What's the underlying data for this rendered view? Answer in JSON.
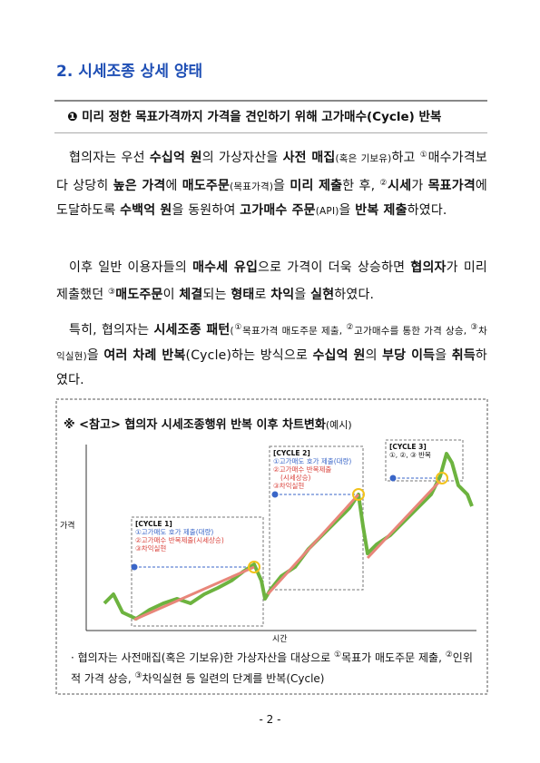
{
  "section_title": "2. 시세조종 상세 양태",
  "subheading": "❶ 미리 정한 목표가격까지 가격을 견인하기 위해 고가매수(Cycle) 반복",
  "paragraphs": [
    [
      "협의자는 우선 ",
      "수십억 원",
      "의 가상자산을 ",
      "사전 매집",
      "(혹은 기보유)",
      "하고 ",
      "①",
      "매수가격보다 상당히 ",
      "높은 가격",
      "에 ",
      "매도주문",
      "(목표가격)",
      "을 ",
      "미리 제출",
      "한 후, ",
      "②",
      "시세",
      "가 ",
      "목표가격",
      "에 도달하도록 ",
      "수백억 원",
      "을 동원하여 ",
      "고가매수 주문",
      "(API)",
      "을 ",
      "반복 제출",
      "하였다."
    ],
    [
      "이후 일반 이용자들의 ",
      "매수세 유입",
      "으로 가격이 더욱 상승하면 ",
      "협의자",
      "가 미리 제출했던 ",
      "③",
      "매도주문",
      "이 ",
      "체결",
      "되는 ",
      "형태",
      "로 ",
      "차익",
      "을 ",
      "실현",
      "하였다."
    ],
    [
      "특히, 협의자는 ",
      "시세조종 패턴",
      "(",
      "①",
      "목표가격 매도주문 제출, ",
      "②",
      "고가매수를 통한 가격 상승, ",
      "③",
      "차익실현)",
      "을 ",
      "여러 차례 반복",
      "(Cycle)하는 방식으로 ",
      "수십억 원",
      "의 ",
      "부당 이득",
      "을 ",
      "취득",
      "하였다."
    ]
  ],
  "figure": {
    "title": [
      "※ <참고> 협의자 시세조종행위 반복 이후 차트변화",
      "(예시)"
    ],
    "y_label": "가격",
    "x_label": "시간",
    "cycles": [
      {
        "title": "[CYCLE 1]",
        "lines": [
          "①고가매도 호가 제출(대량)",
          "②고가매수 반복제출(시세상승)",
          "③차익실현"
        ]
      },
      {
        "title": "[CYCLE 2]",
        "lines": [
          "①고가매도 호가 제출(대량)",
          "②고가매수 반복제출",
          "(시세상승)",
          "③차익실현"
        ]
      },
      {
        "title": "[CYCLE 3]",
        "lines": [
          "①, ②, ③ 반복"
        ]
      }
    ],
    "caption": [
      "· 협의자는 사전매집(혹은 기보유)한 가상자산을 대상으로 ",
      "①",
      "목표가 매도주문 제출, ",
      "②",
      "인위적 가격 상승, ",
      "③",
      "차익실현 등 일련의 단계를 반복(Cycle)"
    ]
  },
  "page_number": "- 2 -"
}
